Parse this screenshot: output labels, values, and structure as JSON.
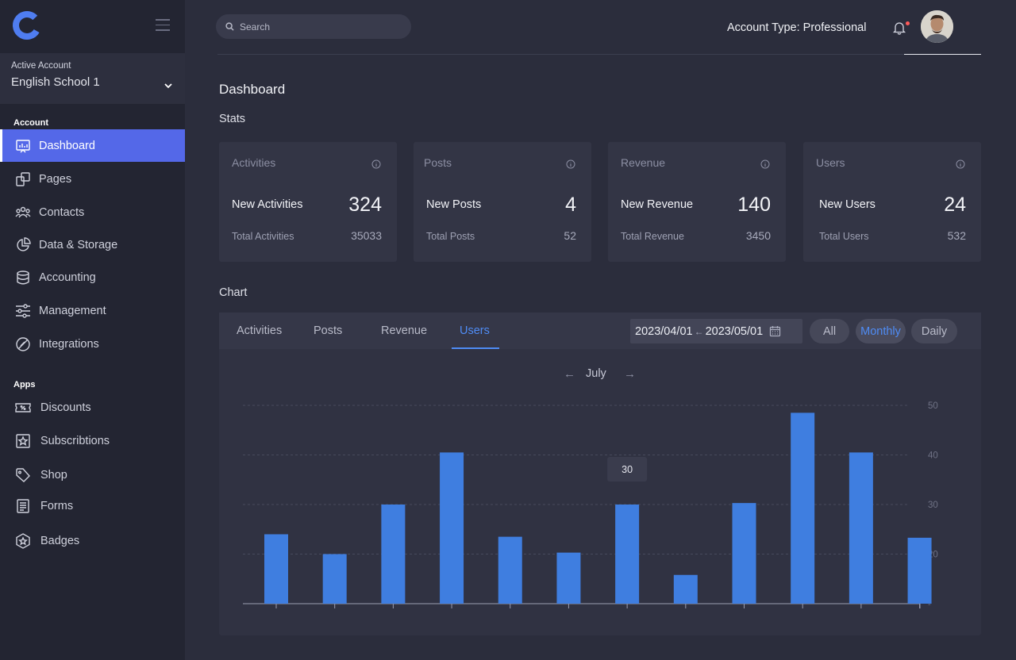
{
  "sidebar": {
    "active_account_label": "Active Account",
    "active_account_value": "English School 1",
    "section_account": "Account",
    "section_apps": "Apps",
    "account_items": [
      {
        "label": "Dashboard",
        "icon": "dashboard-icon"
      },
      {
        "label": "Pages",
        "icon": "pages-icon"
      },
      {
        "label": "Contacts",
        "icon": "contacts-icon"
      },
      {
        "label": "Data & Storage",
        "icon": "pie-chart-icon"
      },
      {
        "label": "Accounting",
        "icon": "database-icon"
      },
      {
        "label": "Management",
        "icon": "sliders-icon"
      },
      {
        "label": "Integrations",
        "icon": "integrations-icon"
      }
    ],
    "app_items": [
      {
        "label": "Discounts",
        "icon": "discount-ticket-icon"
      },
      {
        "label": "Subscribtions",
        "icon": "star-box-icon"
      },
      {
        "label": "Shop",
        "icon": "tag-icon"
      },
      {
        "label": "Forms",
        "icon": "form-icon"
      },
      {
        "label": "Badges",
        "icon": "badge-icon"
      }
    ]
  },
  "header": {
    "search_placeholder": "Search",
    "account_type": "Account Type: Professional"
  },
  "main": {
    "title": "Dashboard",
    "stats_label": "Stats",
    "chart_label": "Chart"
  },
  "cards": [
    {
      "title": "Activities",
      "new_label": "New Activities",
      "new_value": "324",
      "total_label": "Total Activities",
      "total_value": "35033"
    },
    {
      "title": "Posts",
      "new_label": "New Posts",
      "new_value": "4",
      "total_label": "Total Posts",
      "total_value": "52"
    },
    {
      "title": "Revenue",
      "new_label": "New Revenue",
      "new_value": "140",
      "total_label": "Total Revenue",
      "total_value": "3450"
    },
    {
      "title": "Users",
      "new_label": "New Users",
      "new_value": "24",
      "total_label": "Total Users",
      "total_value": "532"
    }
  ],
  "chart_panel": {
    "tabs": [
      "Activities",
      "Posts",
      "Revenue",
      "Users"
    ],
    "active_tab": "Users",
    "date_from": "2023/04/01",
    "date_arrow": "←",
    "date_to": "2023/05/01",
    "periods": [
      "All",
      "Monthly",
      "Daily"
    ],
    "active_period": "Monthly",
    "month": "July",
    "prev_arrow": "←",
    "next_arrow": "→"
  },
  "chart_data": {
    "type": "bar",
    "values": [
      24,
      20,
      30,
      40.5,
      23.5,
      20.3,
      30,
      15.8,
      30.3,
      48.5,
      40.5,
      23.3
    ],
    "yticks": [
      20,
      30,
      40,
      50
    ],
    "ylim": [
      10,
      50
    ],
    "grid": true,
    "tooltip": {
      "index": 6,
      "text": "30"
    },
    "bar_color": "#3f7ee0"
  },
  "colors": {
    "accent": "#5468e8",
    "link_blue": "#4f8cf5",
    "notification": "#ff5a5a"
  }
}
